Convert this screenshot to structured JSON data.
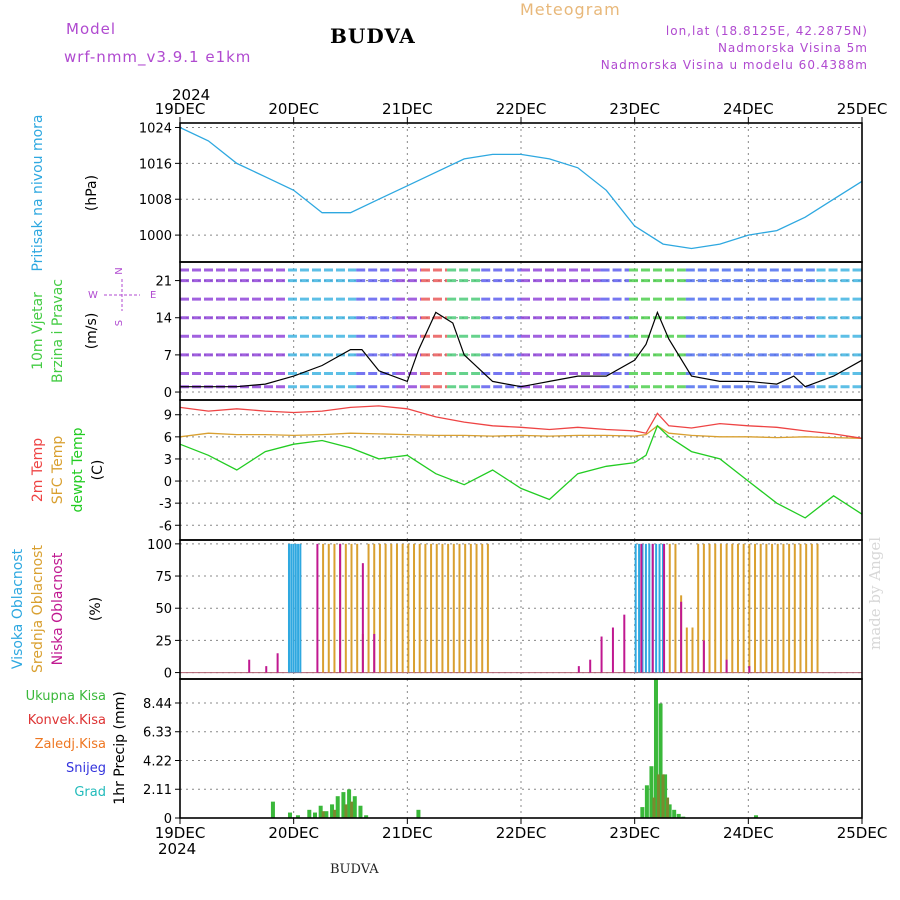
{
  "header": {
    "model_label": "Model",
    "model_version": "wrf-nmm_v3.9.1  e1km",
    "location_title": "BUDVA",
    "meteogram_label": "Meteogram",
    "coords": "lon,lat (18.8125E, 42.2875N)",
    "elevation": "Nadmorska Visina 5m",
    "model_elevation": "Nadmorska Visina u modelu 60.4388m"
  },
  "footer": {
    "location": "BUDVA"
  },
  "watermark": "made by Angel",
  "axis": {
    "year_top": "2024",
    "year_bottom": "2024",
    "dates": [
      "19DEC",
      "20DEC",
      "21DEC",
      "22DEC",
      "23DEC",
      "24DEC",
      "25DEC"
    ]
  },
  "colors": {
    "pressure": "#2ea8e0",
    "temp2m": "#ee4444",
    "sfctemp": "#d9a030",
    "dewpt": "#22cc22",
    "high_cloud": "#2ea8e0",
    "mid_cloud": "#d9a030",
    "low_cloud": "#c01890",
    "rain_total": "#3ab83a",
    "rain_conv": "#dd3333",
    "snow": "#3333dd",
    "hail": "#22bbbb",
    "frz": "#ee7722",
    "wind_label": "#44cc44",
    "compass": "#b04ad0"
  },
  "chart_data": [
    {
      "type": "line",
      "panel": "pressure",
      "ylabel_lines": [
        "Pritisak na nivou mora"
      ],
      "unit": "(hPa)",
      "yticks": [
        "1000",
        "1008",
        "1016",
        "1024"
      ],
      "ylim": [
        994,
        1025
      ],
      "x_days": [
        0,
        0.25,
        0.5,
        0.75,
        1.0,
        1.25,
        1.5,
        1.75,
        2.0,
        2.25,
        2.5,
        2.75,
        3.0,
        3.25,
        3.5,
        3.75,
        4.0,
        4.25,
        4.5,
        4.75,
        5.0,
        5.25,
        5.5,
        5.75,
        6.0
      ],
      "series": [
        {
          "values": [
            1024,
            1021,
            1016,
            1013,
            1010,
            1005,
            1005,
            1008,
            1011,
            1014,
            1017,
            1018,
            1018,
            1017,
            1015,
            1010,
            1002,
            998,
            997,
            998,
            1000,
            1001,
            1004,
            1008,
            1012
          ]
        }
      ]
    },
    {
      "type": "line",
      "panel": "wind",
      "ylabel_lines": [
        "10m Vjetar",
        "Brzina i Pravac"
      ],
      "unit": "(m/s)",
      "compass": [
        "N",
        "W",
        "E",
        "S"
      ],
      "yticks": [
        "0",
        "7",
        "14",
        "21"
      ],
      "ylim": [
        -1.5,
        24.5
      ],
      "x_days": [
        0,
        0.5,
        0.75,
        1.0,
        1.25,
        1.5,
        1.6,
        1.75,
        2.0,
        2.1,
        2.25,
        2.4,
        2.5,
        2.75,
        3.0,
        3.25,
        3.5,
        3.75,
        4.0,
        4.1,
        4.2,
        4.3,
        4.5,
        4.75,
        5.0,
        5.25,
        5.4,
        5.5,
        5.75,
        6.0
      ],
      "series": [
        {
          "name": "speed",
          "values": [
            1,
            1,
            1.5,
            3,
            5,
            8,
            8,
            4,
            2,
            8,
            15,
            13,
            7,
            2,
            1,
            2,
            3,
            3,
            6,
            9,
            15,
            10,
            3,
            2,
            2,
            1.5,
            3,
            1,
            3,
            6
          ]
        }
      ]
    },
    {
      "type": "line",
      "panel": "temperature",
      "ylabel_lines": [
        "2m Temp",
        "SFC Temp",
        "dewpt Temp"
      ],
      "unit": "(C)",
      "yticks": [
        "-6",
        "-3",
        "0",
        "3",
        "6",
        "9"
      ],
      "ylim": [
        -8,
        11
      ],
      "x_days": [
        0,
        0.25,
        0.5,
        0.75,
        1.0,
        1.25,
        1.5,
        1.75,
        2.0,
        2.25,
        2.5,
        2.75,
        3.0,
        3.25,
        3.5,
        3.75,
        4.0,
        4.1,
        4.2,
        4.3,
        4.5,
        4.75,
        5.0,
        5.25,
        5.5,
        5.75,
        6.0
      ],
      "series": [
        {
          "name": "2m Temp",
          "values": [
            10,
            9.5,
            9.8,
            9.5,
            9.3,
            9.5,
            10,
            10.2,
            9.8,
            8.7,
            8,
            7.5,
            7.3,
            7,
            7.3,
            7,
            6.8,
            6.5,
            9.2,
            7.5,
            7.2,
            7.8,
            7.5,
            7.3,
            6.8,
            6.4,
            5.8
          ]
        },
        {
          "name": "SFC Temp",
          "values": [
            6,
            6.5,
            6.3,
            6.3,
            6.2,
            6.3,
            6.5,
            6.4,
            6.3,
            6.2,
            6.2,
            6.1,
            6.2,
            6.1,
            6.2,
            6.2,
            6.1,
            6.3,
            7.5,
            6.5,
            6.2,
            6.0,
            6.0,
            5.9,
            6.0,
            5.9,
            5.8
          ]
        },
        {
          "name": "dewpt Temp",
          "values": [
            5,
            3.5,
            1.5,
            4,
            5,
            5.5,
            4.5,
            3,
            3.5,
            1,
            -0.5,
            1.5,
            -1,
            -2.5,
            1,
            2,
            2.5,
            3.5,
            7.5,
            6,
            4,
            3,
            0,
            -3,
            -5,
            -2,
            -4.5
          ]
        }
      ]
    },
    {
      "type": "bar",
      "panel": "cloud",
      "ylabel_lines": [
        "Visoka Oblacnost",
        "Srednja Oblacnost",
        "Niska Oblacnost"
      ],
      "unit": "(%)",
      "yticks": [
        "0",
        "25",
        "50",
        "75",
        "100"
      ],
      "ylim": [
        -5,
        103
      ],
      "series": [
        {
          "name": "Visoka Oblacnost",
          "color": "#2ea8e0",
          "x_days": [
            0.95,
            0.97,
            0.99,
            1.01,
            1.03,
            1.05,
            4.0,
            4.03,
            4.06,
            4.09,
            4.12,
            4.15,
            4.18,
            4.21,
            4.24
          ],
          "values": [
            100,
            100,
            100,
            100,
            100,
            100,
            100,
            100,
            100,
            100,
            100,
            100,
            100,
            100,
            100
          ]
        },
        {
          "name": "Srednja Oblacnost",
          "color": "#d9a030",
          "x_days": [
            1.25,
            1.3,
            1.35,
            1.4,
            1.45,
            1.5,
            1.55,
            1.6,
            1.65,
            1.7,
            1.75,
            1.8,
            1.85,
            1.9,
            1.95,
            2.0,
            2.05,
            2.1,
            2.15,
            2.2,
            2.25,
            2.3,
            2.35,
            2.4,
            2.45,
            2.5,
            2.55,
            2.6,
            2.65,
            2.7,
            4.3,
            4.35,
            4.4,
            4.45,
            4.5,
            4.55,
            4.6,
            4.65,
            4.7,
            4.75,
            4.8,
            4.85,
            4.9,
            4.95,
            5.0,
            5.05,
            5.1,
            5.15,
            5.2,
            5.25,
            5.3,
            5.35,
            5.4,
            5.45,
            5.5,
            5.55,
            5.6
          ],
          "values": [
            100,
            100,
            100,
            100,
            100,
            100,
            100,
            30,
            100,
            100,
            100,
            100,
            100,
            100,
            100,
            100,
            100,
            100,
            100,
            100,
            100,
            100,
            100,
            100,
            100,
            100,
            100,
            100,
            100,
            100,
            100,
            100,
            60,
            35,
            35,
            100,
            100,
            100,
            100,
            100,
            100,
            100,
            100,
            100,
            100,
            100,
            100,
            100,
            100,
            100,
            100,
            100,
            100,
            100,
            100,
            100,
            100
          ]
        },
        {
          "name": "Niska Oblacnost",
          "color": "#c01890",
          "x_days": [
            0.6,
            0.75,
            0.85,
            1.2,
            1.4,
            1.6,
            1.7,
            3.5,
            3.6,
            3.7,
            3.8,
            3.9,
            4.05,
            4.15,
            4.25,
            4.4,
            4.6,
            4.8,
            5.0
          ],
          "values": [
            10,
            5,
            15,
            100,
            100,
            85,
            30,
            5,
            10,
            28,
            35,
            45,
            100,
            100,
            100,
            55,
            25,
            10,
            5
          ]
        }
      ]
    },
    {
      "type": "bar",
      "panel": "precip",
      "ylabel_lines": [
        "1hr Precip (mm)"
      ],
      "legend": [
        "Ukupna Kisa",
        "Konvek.Kisa",
        "Zaledj.Kisa",
        "Snijeg",
        "Grad"
      ],
      "yticks": [
        "0",
        "2.11",
        "4.22",
        "6.33",
        "8.44"
      ],
      "ylim": [
        0,
        10.2
      ],
      "series": [
        {
          "name": "Ukupna Kisa",
          "x_days": [
            0.8,
            0.95,
            1.02,
            1.12,
            1.17,
            1.22,
            1.27,
            1.32,
            1.37,
            1.42,
            1.47,
            1.52,
            1.57,
            1.62,
            2.08,
            4.05,
            4.09,
            4.13,
            4.17,
            4.21,
            4.25,
            4.29,
            4.33,
            4.37,
            4.41,
            5.05
          ],
          "values": [
            1.2,
            0.4,
            0.2,
            0.6,
            0.4,
            0.9,
            0.5,
            1.0,
            1.6,
            1.9,
            2.1,
            1.6,
            0.9,
            0.2,
            0.6,
            0.8,
            2.4,
            3.8,
            10.2,
            8.4,
            3.2,
            1.0,
            0.6,
            0.3,
            0.1,
            0.2
          ]
        },
        {
          "name": "Konvek.Kisa",
          "x_days": [
            1.22,
            1.32,
            1.42,
            1.47,
            4.13,
            4.17,
            4.21,
            4.25
          ],
          "values": [
            0.5,
            0.6,
            1.0,
            1.2,
            1.5,
            3.2,
            3.2,
            1.5
          ]
        }
      ]
    }
  ]
}
